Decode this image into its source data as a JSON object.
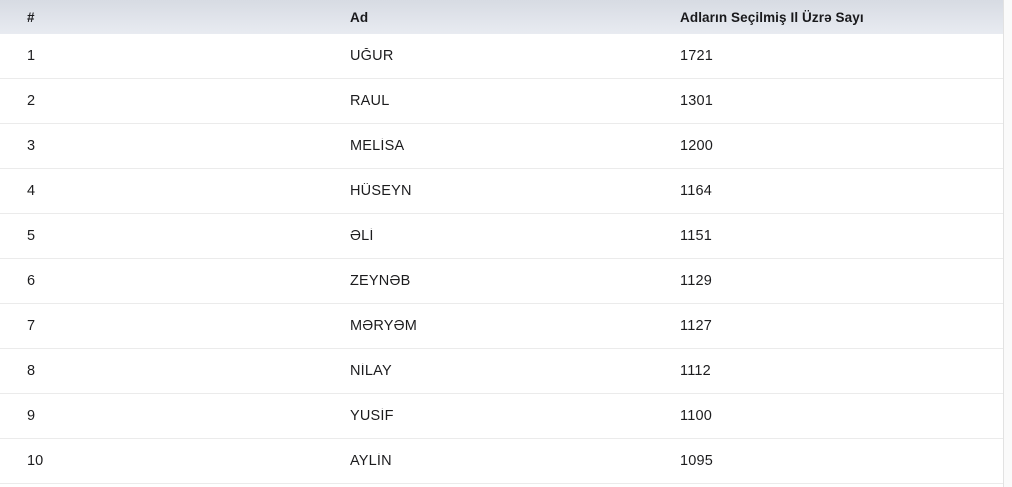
{
  "table": {
    "columns": [
      {
        "key": "rank",
        "label": "#"
      },
      {
        "key": "name",
        "label": "Ad"
      },
      {
        "key": "count",
        "label": "Adların Seçilmiş Il Üzrə Sayı"
      }
    ],
    "rows": [
      {
        "rank": "1",
        "name": "UĞUR",
        "count": "1721"
      },
      {
        "rank": "2",
        "name": "RAUL",
        "count": "1301"
      },
      {
        "rank": "3",
        "name": "MELİSA",
        "count": "1200"
      },
      {
        "rank": "4",
        "name": "HÜSEYN",
        "count": "1164"
      },
      {
        "rank": "5",
        "name": "ƏLİ",
        "count": "1151"
      },
      {
        "rank": "6",
        "name": "ZEYNƏB",
        "count": "1129"
      },
      {
        "rank": "7",
        "name": "MƏRYƏM",
        "count": "1127"
      },
      {
        "rank": "8",
        "name": "NİLAY",
        "count": "1112"
      },
      {
        "rank": "9",
        "name": "YUSİF",
        "count": "1100"
      },
      {
        "rank": "10",
        "name": "AYLİN",
        "count": "1095"
      }
    ]
  },
  "colors": {
    "header_bg_top": "#d7dbe3",
    "header_bg_bottom": "#e8ebf1",
    "row_border": "#ebebeb",
    "text": "#1c1c1e"
  }
}
